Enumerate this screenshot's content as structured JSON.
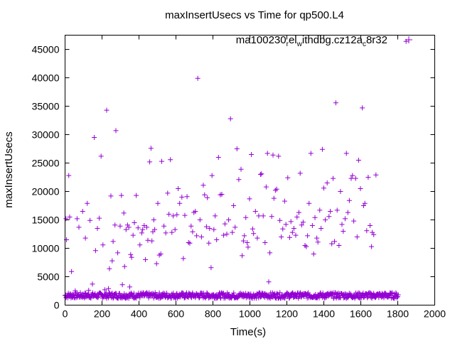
{
  "chart_data": {
    "type": "scatter",
    "title": "maxInsertUsecs vs Time for qp500.L4",
    "xlabel": "Time(s)",
    "ylabel": "maxInsertUsecs",
    "xlim": [
      0,
      2000
    ],
    "ylim": [
      0,
      47500
    ],
    "x_ticks": [
      0,
      200,
      400,
      600,
      800,
      1000,
      1200,
      1400,
      1600,
      1800,
      2000
    ],
    "y_ticks": [
      0,
      5000,
      10000,
      15000,
      20000,
      25000,
      30000,
      35000,
      40000,
      45000
    ],
    "grid": false,
    "legend_position": "top-right",
    "legend": {
      "parts": [
        {
          "text": "ma100230",
          "sub": false
        },
        {
          "text": "r",
          "sub": true
        },
        {
          "text": "el",
          "sub": false
        },
        {
          "text": "w",
          "sub": true
        },
        {
          "text": "ithdbg.cz12a",
          "sub": false
        },
        {
          "text": "c",
          "sub": true
        },
        {
          "text": "8r32",
          "sub": false
        }
      ]
    },
    "series": [
      {
        "color": "#9400d3",
        "marker": "plus",
        "baseline_band": {
          "x_range": [
            0,
            1800
          ],
          "x_step": 5,
          "y_min": 1200,
          "y_max": 2200
        },
        "points": [
          [
            5,
            15200
          ],
          [
            8,
            11500
          ],
          [
            20,
            22800
          ],
          [
            25,
            15500
          ],
          [
            35,
            5900
          ],
          [
            55,
            2500
          ],
          [
            65,
            15200
          ],
          [
            75,
            13700
          ],
          [
            95,
            16500
          ],
          [
            110,
            11800
          ],
          [
            120,
            17900
          ],
          [
            128,
            2600
          ],
          [
            135,
            14900
          ],
          [
            148,
            3700
          ],
          [
            158,
            29500
          ],
          [
            165,
            9600
          ],
          [
            175,
            13500
          ],
          [
            185,
            15300
          ],
          [
            195,
            26200
          ],
          [
            205,
            10600
          ],
          [
            215,
            2700
          ],
          [
            225,
            34300
          ],
          [
            235,
            2900
          ],
          [
            240,
            6400
          ],
          [
            248,
            19200
          ],
          [
            255,
            7800
          ],
          [
            260,
            11200
          ],
          [
            270,
            14100
          ],
          [
            275,
            30700
          ],
          [
            285,
            9200
          ],
          [
            298,
            13900
          ],
          [
            305,
            19300
          ],
          [
            310,
            3600
          ],
          [
            318,
            16200
          ],
          [
            322,
            6800
          ],
          [
            330,
            13300
          ],
          [
            338,
            14100
          ],
          [
            345,
            13700
          ],
          [
            350,
            3200
          ],
          [
            355,
            8900
          ],
          [
            360,
            8400
          ],
          [
            368,
            12300
          ],
          [
            375,
            14500
          ],
          [
            385,
            19300
          ],
          [
            395,
            13600
          ],
          [
            405,
            10600
          ],
          [
            415,
            12700
          ],
          [
            420,
            13300
          ],
          [
            428,
            14000
          ],
          [
            435,
            8000
          ],
          [
            442,
            13700
          ],
          [
            448,
            11400
          ],
          [
            458,
            25200
          ],
          [
            465,
            27600
          ],
          [
            470,
            11300
          ],
          [
            475,
            12900
          ],
          [
            480,
            15000
          ],
          [
            485,
            13300
          ],
          [
            495,
            7300
          ],
          [
            502,
            17900
          ],
          [
            510,
            8800
          ],
          [
            518,
            9000
          ],
          [
            523,
            25300
          ],
          [
            535,
            13900
          ],
          [
            545,
            12700
          ],
          [
            555,
            19700
          ],
          [
            562,
            16000
          ],
          [
            570,
            25600
          ],
          [
            578,
            12800
          ],
          [
            585,
            15700
          ],
          [
            595,
            13300
          ],
          [
            605,
            15900
          ],
          [
            612,
            20500
          ],
          [
            620,
            17900
          ],
          [
            632,
            19000
          ],
          [
            640,
            8200
          ],
          [
            648,
            15800
          ],
          [
            660,
            19100
          ],
          [
            668,
            11000
          ],
          [
            675,
            10900
          ],
          [
            682,
            13900
          ],
          [
            690,
            12900
          ],
          [
            697,
            16300
          ],
          [
            705,
            16500
          ],
          [
            712,
            12200
          ],
          [
            718,
            39900
          ],
          [
            730,
            15000
          ],
          [
            738,
            12000
          ],
          [
            748,
            21100
          ],
          [
            755,
            19400
          ],
          [
            765,
            13800
          ],
          [
            770,
            18900
          ],
          [
            778,
            10900
          ],
          [
            782,
            13500
          ],
          [
            790,
            6600
          ],
          [
            795,
            22800
          ],
          [
            805,
            13300
          ],
          [
            812,
            15700
          ],
          [
            820,
            11500
          ],
          [
            830,
            26000
          ],
          [
            840,
            19400
          ],
          [
            848,
            19500
          ],
          [
            858,
            12300
          ],
          [
            865,
            14300
          ],
          [
            875,
            12500
          ],
          [
            885,
            15000
          ],
          [
            895,
            32800
          ],
          [
            905,
            12800
          ],
          [
            912,
            17500
          ],
          [
            920,
            13700
          ],
          [
            930,
            27500
          ],
          [
            940,
            22100
          ],
          [
            952,
            23900
          ],
          [
            958,
            8700
          ],
          [
            965,
            11300
          ],
          [
            970,
            12200
          ],
          [
            978,
            15400
          ],
          [
            985,
            11000
          ],
          [
            990,
            10200
          ],
          [
            998,
            18700
          ],
          [
            1008,
            26500
          ],
          [
            1015,
            13400
          ],
          [
            1020,
            12600
          ],
          [
            1030,
            16500
          ],
          [
            1040,
            11800
          ],
          [
            1048,
            15700
          ],
          [
            1058,
            23000
          ],
          [
            1063,
            23100
          ],
          [
            1072,
            15700
          ],
          [
            1082,
            11000
          ],
          [
            1088,
            20800
          ],
          [
            1095,
            26700
          ],
          [
            1102,
            4100
          ],
          [
            1108,
            9200
          ],
          [
            1118,
            15600
          ],
          [
            1125,
            26400
          ],
          [
            1130,
            18800
          ],
          [
            1138,
            20200
          ],
          [
            1145,
            20400
          ],
          [
            1155,
            26200
          ],
          [
            1162,
            14900
          ],
          [
            1170,
            12000
          ],
          [
            1178,
            13400
          ],
          [
            1188,
            18300
          ],
          [
            1195,
            14200
          ],
          [
            1205,
            22400
          ],
          [
            1215,
            11900
          ],
          [
            1222,
            14700
          ],
          [
            1230,
            12800
          ],
          [
            1238,
            13500
          ],
          [
            1248,
            12300
          ],
          [
            1255,
            15500
          ],
          [
            1265,
            16300
          ],
          [
            1272,
            23200
          ],
          [
            1280,
            14100
          ],
          [
            1288,
            14600
          ],
          [
            1298,
            10500
          ],
          [
            1305,
            10300
          ],
          [
            1312,
            12200
          ],
          [
            1320,
            17900
          ],
          [
            1330,
            26700
          ],
          [
            1338,
            14000
          ],
          [
            1345,
            9000
          ],
          [
            1352,
            15400
          ],
          [
            1362,
            11800
          ],
          [
            1368,
            11100
          ],
          [
            1378,
            16700
          ],
          [
            1385,
            13500
          ],
          [
            1392,
            27400
          ],
          [
            1400,
            20600
          ],
          [
            1408,
            15000
          ],
          [
            1418,
            21500
          ],
          [
            1428,
            15600
          ],
          [
            1435,
            16500
          ],
          [
            1443,
            10800
          ],
          [
            1450,
            22300
          ],
          [
            1458,
            11200
          ],
          [
            1465,
            35600
          ],
          [
            1472,
            16700
          ],
          [
            1482,
            10500
          ],
          [
            1490,
            20000
          ],
          [
            1498,
            14200
          ],
          [
            1505,
            13000
          ],
          [
            1515,
            15200
          ],
          [
            1522,
            26700
          ],
          [
            1530,
            16300
          ],
          [
            1538,
            18400
          ],
          [
            1548,
            22300
          ],
          [
            1555,
            22800
          ],
          [
            1562,
            14800
          ],
          [
            1572,
            22300
          ],
          [
            1580,
            12000
          ],
          [
            1588,
            25500
          ],
          [
            1598,
            20500
          ],
          [
            1608,
            34700
          ],
          [
            1615,
            17500
          ],
          [
            1622,
            17900
          ],
          [
            1632,
            13100
          ],
          [
            1640,
            22500
          ],
          [
            1650,
            14000
          ],
          [
            1658,
            10300
          ],
          [
            1662,
            12800
          ],
          [
            1670,
            12400
          ],
          [
            1682,
            22900
          ],
          [
            1845,
            46400
          ]
        ]
      }
    ]
  }
}
